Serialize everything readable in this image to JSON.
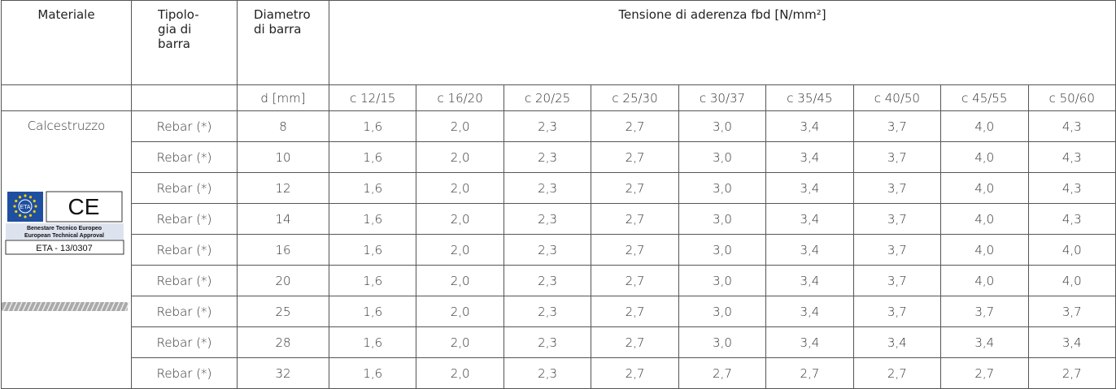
{
  "table": {
    "header": [
      "Materiale",
      "Tipolo-gia di barra",
      "Diametro di barra",
      "Tensione di aderenza fbd [N/mm²]"
    ],
    "subheader": [
      "d [mm]",
      "c 12/15",
      "c 16/20",
      "c 20/25",
      "c 25/30",
      "c 30/37",
      "c 35/45",
      "c 40/50",
      "c 45/55",
      "c 50/60"
    ],
    "material": "Calcestruzzo",
    "rows": [
      [
        "Rebar (*)",
        "8",
        "1,6",
        "2,0",
        "2,3",
        "2,7",
        "3,0",
        "3,4",
        "3,7",
        "4,0",
        "4,3"
      ],
      [
        "Rebar (*)",
        "10",
        "1,6",
        "2,0",
        "2,3",
        "2,7",
        "3,0",
        "3,4",
        "3,7",
        "4,0",
        "4,3"
      ],
      [
        "Rebar (*)",
        "12",
        "1,6",
        "2,0",
        "2,3",
        "2,7",
        "3,0",
        "3,4",
        "3,7",
        "4,0",
        "4,3"
      ],
      [
        "Rebar (*)",
        "14",
        "1,6",
        "2,0",
        "2,3",
        "2,7",
        "3,0",
        "3,4",
        "3,7",
        "4,0",
        "4,3"
      ],
      [
        "Rebar (*)",
        "16",
        "1,6",
        "2,0",
        "2,3",
        "2,7",
        "3,0",
        "3,4",
        "3,7",
        "4,0",
        "4,0"
      ],
      [
        "Rebar (*)",
        "20",
        "1,6",
        "2,0",
        "2,3",
        "2,7",
        "3,0",
        "3,4",
        "3,7",
        "4,0",
        "4,0"
      ],
      [
        "Rebar (*)",
        "25",
        "1,6",
        "2,0",
        "2,3",
        "2,7",
        "3,0",
        "3,4",
        "3,7",
        "3,7",
        "3,7"
      ],
      [
        "Rebar (*)",
        "28",
        "1,6",
        "2,0",
        "2,3",
        "2,7",
        "3,0",
        "3,4",
        "3,4",
        "3,4",
        "3,4"
      ],
      [
        "Rebar (*)",
        "32",
        "1,6",
        "2,0",
        "2,3",
        "2,7",
        "2,7",
        "2,7",
        "2,7",
        "2,7",
        "2,7"
      ]
    ]
  },
  "logo": {
    "eu_label": "ETA",
    "ce": "CE",
    "line1": "Benestare Tecnico Europeo",
    "line2": "European Technical Approval",
    "code": "ETA - 13/0307"
  }
}
